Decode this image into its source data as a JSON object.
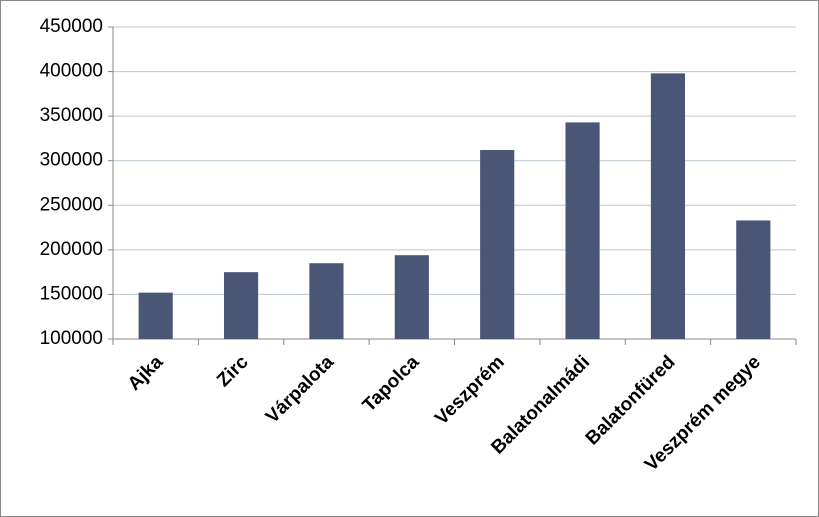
{
  "chart_data": {
    "type": "bar",
    "categories": [
      "Ajka",
      "Zirc",
      "Várpalota",
      "Tapolca",
      "Veszprém",
      "Balatonalmádi",
      "Balatonfüred",
      "Veszprém megye"
    ],
    "values": [
      152000,
      175000,
      185000,
      194000,
      312000,
      343000,
      398000,
      233000
    ],
    "color": "#4a5675",
    "ylim": [
      100000,
      450000
    ],
    "yticks": [
      100000,
      150000,
      200000,
      250000,
      300000,
      350000,
      400000,
      450000
    ],
    "grid": true
  }
}
